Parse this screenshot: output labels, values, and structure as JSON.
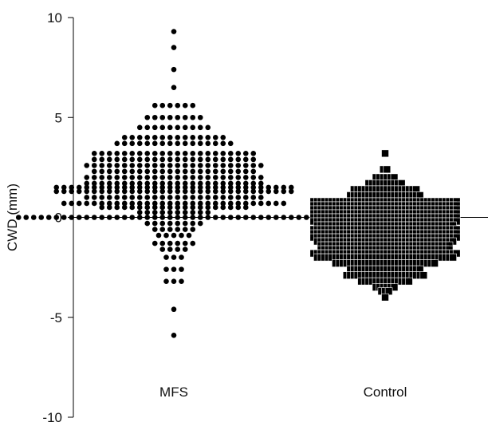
{
  "chart_data": {
    "type": "scatter",
    "subtype": "beeswarm",
    "title": "",
    "xlabel": "",
    "ylabel": "CWD (mm)",
    "ylim": [
      -10,
      10
    ],
    "yticks": [
      10,
      5,
      0,
      -5,
      -10
    ],
    "ytick_labels": [
      "10",
      "5",
      "0",
      "-5",
      "-10"
    ],
    "zero_line": true,
    "grid": false,
    "legend": "none",
    "categories": [
      "MFS",
      "Control"
    ],
    "series": [
      {
        "marker": "circle",
        "color": "#000000",
        "rows": [
          {
            "y": 9.3,
            "n": 1
          },
          {
            "y": 8.5,
            "n": 1
          },
          {
            "y": 7.4,
            "n": 1
          },
          {
            "y": 6.5,
            "n": 1
          },
          {
            "y": 5.6,
            "n": 6
          },
          {
            "y": 5.0,
            "n": 8
          },
          {
            "y": 4.5,
            "n": 10
          },
          {
            "y": 4.0,
            "n": 14
          },
          {
            "y": 3.7,
            "n": 16
          },
          {
            "y": 3.2,
            "n": 22
          },
          {
            "y": 2.9,
            "n": 22
          },
          {
            "y": 2.6,
            "n": 24
          },
          {
            "y": 2.3,
            "n": 22
          },
          {
            "y": 2.0,
            "n": 24
          },
          {
            "y": 1.7,
            "n": 24
          },
          {
            "y": 1.5,
            "n": 32
          },
          {
            "y": 1.3,
            "n": 32
          },
          {
            "y": 1.0,
            "n": 24
          },
          {
            "y": 0.7,
            "n": 30
          },
          {
            "y": 0.5,
            "n": 20
          },
          {
            "y": 0.25,
            "n": 10
          },
          {
            "y": 0.0,
            "n": 42
          },
          {
            "y": -0.3,
            "n": 8
          },
          {
            "y": -0.6,
            "n": 6
          },
          {
            "y": -0.9,
            "n": 5
          },
          {
            "y": -1.3,
            "n": 6
          },
          {
            "y": -1.6,
            "n": 4
          },
          {
            "y": -2.0,
            "n": 3
          },
          {
            "y": -2.6,
            "n": 3
          },
          {
            "y": -3.2,
            "n": 3
          },
          {
            "y": -4.6,
            "n": 1
          },
          {
            "y": -5.9,
            "n": 1
          }
        ]
      },
      {
        "marker": "square",
        "color": "#000000",
        "rows": [
          {
            "y": 3.2,
            "n": 1
          },
          {
            "y": 2.4,
            "n": 2
          },
          {
            "y": 2.0,
            "n": 6
          },
          {
            "y": 1.7,
            "n": 10
          },
          {
            "y": 1.4,
            "n": 18
          },
          {
            "y": 1.1,
            "n": 20
          },
          {
            "y": 0.8,
            "n": 40
          },
          {
            "y": 0.6,
            "n": 40
          },
          {
            "y": 0.4,
            "n": 40
          },
          {
            "y": 0.2,
            "n": 40
          },
          {
            "y": 0.0,
            "n": 40
          },
          {
            "y": -0.2,
            "n": 40
          },
          {
            "y": -0.4,
            "n": 38
          },
          {
            "y": -0.6,
            "n": 40
          },
          {
            "y": -0.8,
            "n": 40
          },
          {
            "y": -1.0,
            "n": 40
          },
          {
            "y": -1.2,
            "n": 38
          },
          {
            "y": -1.4,
            "n": 36
          },
          {
            "y": -1.6,
            "n": 36
          },
          {
            "y": -1.8,
            "n": 40
          },
          {
            "y": -2.0,
            "n": 38
          },
          {
            "y": -2.3,
            "n": 28
          },
          {
            "y": -2.6,
            "n": 20
          },
          {
            "y": -2.9,
            "n": 22
          },
          {
            "y": -3.2,
            "n": 14
          },
          {
            "y": -3.5,
            "n": 6
          },
          {
            "y": -3.7,
            "n": 3
          },
          {
            "y": -4.0,
            "n": 1
          }
        ]
      }
    ]
  }
}
